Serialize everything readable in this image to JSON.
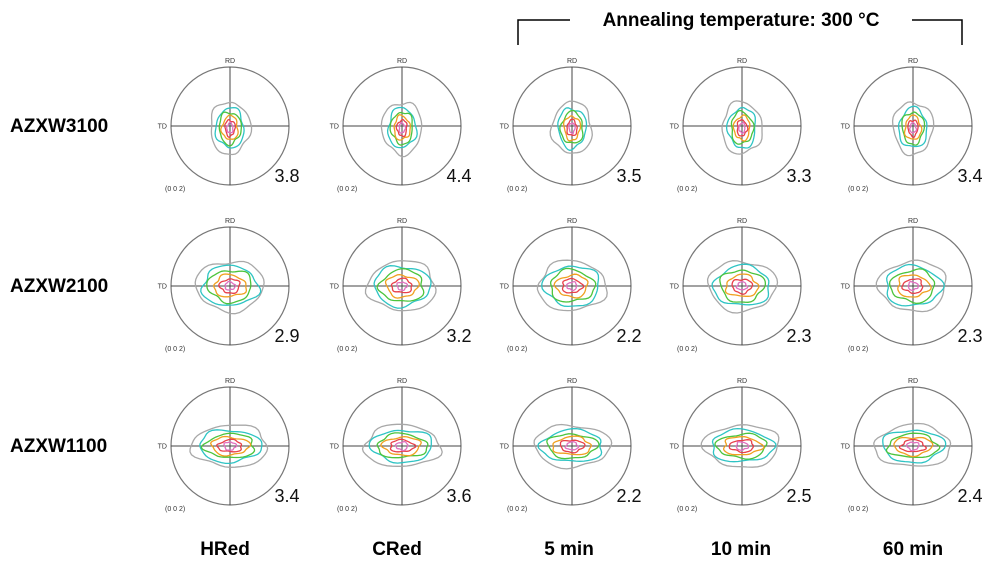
{
  "header": {
    "text": "Annealing temperature: 300 °C"
  },
  "axes": {
    "rd": "RD",
    "td": "TD",
    "plane": "(0 0 2)"
  },
  "rows": [
    {
      "label": "AZXW3100"
    },
    {
      "label": "AZXW2100"
    },
    {
      "label": "AZXW1100"
    }
  ],
  "columns": [
    {
      "label": "HRed"
    },
    {
      "label": "CRed"
    },
    {
      "label": "5 min"
    },
    {
      "label": "10 min"
    },
    {
      "label": "60 min"
    }
  ],
  "max_intensity": [
    [
      "3.8",
      "4.4",
      "3.5",
      "3.3",
      "3.4"
    ],
    [
      "2.9",
      "3.2",
      "2.2",
      "2.3",
      "2.3"
    ],
    [
      "3.4",
      "3.6",
      "2.2",
      "2.5",
      "2.4"
    ]
  ],
  "contour_colors": [
    "#a8a8a8",
    "#2ec4c4",
    "#4cc43c",
    "#f0a020",
    "#e8404a",
    "#e070c0"
  ]
}
